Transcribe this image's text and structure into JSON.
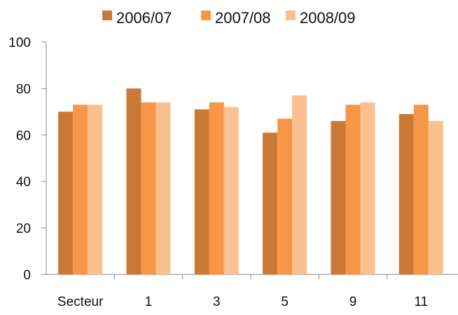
{
  "chart_data": {
    "type": "bar",
    "categories": [
      "Secteur",
      "1",
      "3",
      "5",
      "9",
      "11"
    ],
    "series": [
      {
        "name": "2006/07",
        "color": "#C97835",
        "values": [
          70,
          80,
          71,
          61,
          66,
          69
        ]
      },
      {
        "name": "2007/08",
        "color": "#F79646",
        "values": [
          73,
          74,
          74,
          67,
          73,
          73
        ]
      },
      {
        "name": "2008/09",
        "color": "#FAC090",
        "values": [
          73,
          74,
          72,
          77,
          74,
          66
        ]
      }
    ],
    "yticks": [
      "0",
      "20",
      "40",
      "60",
      "80",
      "100"
    ],
    "ylim": [
      0,
      100
    ],
    "grid": false,
    "legend_position": "top-center",
    "title": "",
    "xlabel": "",
    "ylabel": ""
  }
}
